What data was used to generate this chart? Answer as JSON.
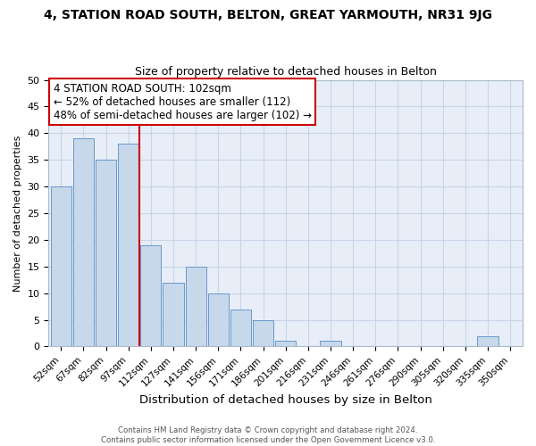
{
  "title": "4, STATION ROAD SOUTH, BELTON, GREAT YARMOUTH, NR31 9JG",
  "subtitle": "Size of property relative to detached houses in Belton",
  "xlabel": "Distribution of detached houses by size in Belton",
  "ylabel": "Number of detached properties",
  "bar_labels": [
    "52sqm",
    "67sqm",
    "82sqm",
    "97sqm",
    "112sqm",
    "127sqm",
    "141sqm",
    "156sqm",
    "171sqm",
    "186sqm",
    "201sqm",
    "216sqm",
    "231sqm",
    "246sqm",
    "261sqm",
    "276sqm",
    "290sqm",
    "305sqm",
    "320sqm",
    "335sqm",
    "350sqm"
  ],
  "bar_values": [
    30,
    39,
    35,
    38,
    19,
    12,
    15,
    10,
    7,
    5,
    1,
    0,
    1,
    0,
    0,
    0,
    0,
    0,
    0,
    2,
    0
  ],
  "bar_color": "#c8d8eb",
  "bar_edge_color": "#6699cc",
  "vline_x_index": 3.5,
  "vline_color": "#cc0000",
  "annotation_line1": "4 STATION ROAD SOUTH: 102sqm",
  "annotation_line2": "← 52% of detached houses are smaller (112)",
  "annotation_line3": "48% of semi-detached houses are larger (102) →",
  "annotation_box_facecolor": "#ffffff",
  "annotation_box_edgecolor": "#cc0000",
  "ylim": [
    0,
    50
  ],
  "yticks": [
    0,
    5,
    10,
    15,
    20,
    25,
    30,
    35,
    40,
    45,
    50
  ],
  "grid_color": "#c8d4e8",
  "plot_bg_color": "#e8eef8",
  "fig_bg_color": "#ffffff",
  "footer1": "Contains HM Land Registry data © Crown copyright and database right 2024.",
  "footer2": "Contains public sector information licensed under the Open Government Licence v3.0."
}
